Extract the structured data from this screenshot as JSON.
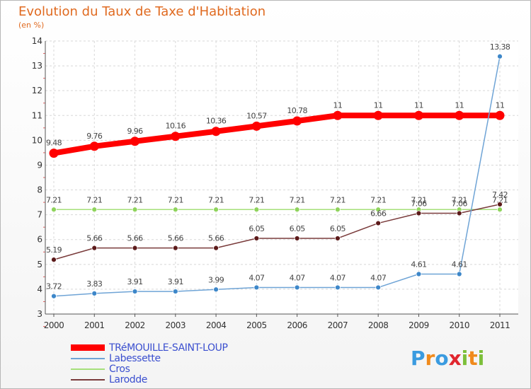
{
  "title": "Evolution du Taux de Taxe d'Habitation",
  "subtitle": "(en %)",
  "logo": {
    "letters": [
      "P",
      "r",
      "o",
      "x",
      "i",
      "t",
      "i"
    ],
    "colors": [
      "#3a9be0",
      "#f08a1c",
      "#3a9be0",
      "#e0262e",
      "#7cbf3a",
      "#f08a1c",
      "#7cbf3a"
    ]
  },
  "chart_data": {
    "type": "line",
    "title": "Evolution du Taux de Taxe d'Habitation",
    "ylabel": "(en %)",
    "xlabel": "",
    "x": [
      "2000",
      "2001",
      "2002",
      "2003",
      "2004",
      "2005",
      "2006",
      "2007",
      "2008",
      "2009",
      "2010",
      "2011"
    ],
    "ylim": [
      3,
      14
    ],
    "yticks": [
      "3",
      "4",
      "5",
      "6",
      "7",
      "8",
      "9",
      "10",
      "11",
      "12",
      "13",
      "14"
    ],
    "grid": true,
    "legend_position": "bottom-left",
    "series": [
      {
        "name": "TRéMOUILLE-SAINT-LOUP",
        "color": "#ff0000",
        "values": [
          9.48,
          9.76,
          9.96,
          10.16,
          10.36,
          10.57,
          10.78,
          11,
          11,
          11,
          11,
          11
        ],
        "labels": [
          "9.48",
          "9.76",
          "9.96",
          "10.16",
          "10.36",
          "10.57",
          "10.78",
          "11",
          "11",
          "11",
          "11",
          "11"
        ]
      },
      {
        "name": "Labessette",
        "color": "#6fa4d6",
        "marker_color": "#3d87c9",
        "values": [
          3.72,
          3.83,
          3.91,
          3.91,
          3.99,
          4.07,
          4.07,
          4.07,
          4.07,
          4.61,
          4.61,
          13.38
        ],
        "labels": [
          "3.72",
          "3.83",
          "3.91",
          "3.91",
          "3.99",
          "4.07",
          "4.07",
          "4.07",
          "4.07",
          "4.61",
          "4.61",
          "13.38"
        ]
      },
      {
        "name": "Cros",
        "color": "#a6e07a",
        "marker_color": "#8fd45c",
        "values": [
          7.21,
          7.21,
          7.21,
          7.21,
          7.21,
          7.21,
          7.21,
          7.21,
          7.21,
          7.21,
          7.21,
          7.21
        ],
        "labels": [
          "7.21",
          "7.21",
          "7.21",
          "7.21",
          "7.21",
          "7.21",
          "7.21",
          "7.21",
          "7.21",
          "7.21",
          "7.21",
          "7.21"
        ]
      },
      {
        "name": "Larodde",
        "color": "#7a3b3b",
        "marker_color": "#5c1a1a",
        "values": [
          5.19,
          5.66,
          5.66,
          5.66,
          5.66,
          6.05,
          6.05,
          6.05,
          6.66,
          7.06,
          7.06,
          7.42
        ],
        "labels": [
          "5.19",
          "5.66",
          "5.66",
          "5.66",
          "5.66",
          "6.05",
          "6.05",
          "6.05",
          "6.66",
          "7.06",
          "7.06",
          "7.42"
        ]
      }
    ]
  }
}
